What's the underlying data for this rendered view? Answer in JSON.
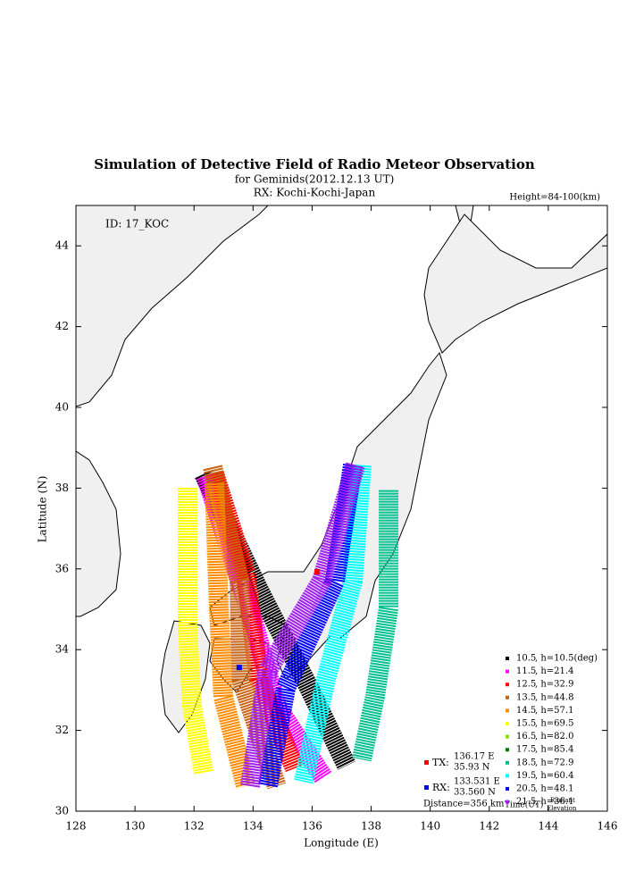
{
  "chart_data": {
    "type": "map",
    "title": "Simulation of Detective Field of Radio Meteor Observation",
    "subtitle": [
      "for Geminids(2012.12.13 UT)",
      "RX: Kochi-Kochi-Japan"
    ],
    "height_label": "Height=84-100(km)",
    "id_label": "ID: 17_KOC",
    "x_label": "Longitude (E)",
    "y_label": "Latitude (N)",
    "xlim": [
      128,
      146
    ],
    "ylim": [
      30,
      45
    ],
    "xticks": [
      128,
      130,
      132,
      134,
      136,
      138,
      140,
      142,
      144,
      146
    ],
    "yticks": [
      30,
      32,
      34,
      36,
      38,
      40,
      42,
      44
    ],
    "series": [
      {
        "name": "10.5",
        "label": ", h=10.5(deg)",
        "color": "#000000",
        "x": [
          132.33,
          134.2,
          135.8,
          137.17
        ],
        "y": [
          38.35,
          35.47,
          33.2,
          31.13
        ]
      },
      {
        "name": "11.5",
        "label": ", h=21.4",
        "color": "#ff00ff",
        "x": [
          132.4,
          134.05,
          134.8,
          136.38
        ],
        "y": [
          38.3,
          34.59,
          32.6,
          30.84
        ]
      },
      {
        "name": "12.5",
        "label": ", h=32.9",
        "color": "#ff0000",
        "x": [
          132.69,
          133.75,
          134.2,
          135.41
        ],
        "y": [
          38.35,
          35.9,
          33.27,
          31.06
        ]
      },
      {
        "name": "13.5",
        "label": ", h=44.8",
        "color": "#c86414",
        "x": [
          132.63,
          133.54,
          133.6,
          134.8
        ],
        "y": [
          38.52,
          35.7,
          33.27,
          30.62
        ]
      },
      {
        "name": "14.5",
        "label": ", h=57.1",
        "color": "#ff8c00",
        "x": [
          132.69,
          132.84,
          132.99,
          133.75
        ],
        "y": [
          38.12,
          35.03,
          32.83,
          30.62
        ]
      },
      {
        "name": "15.5",
        "label": ", h=69.5",
        "color": "#ffff00",
        "x": [
          131.78,
          131.78,
          131.93,
          132.33
        ],
        "y": [
          38.01,
          34.59,
          32.6,
          30.95
        ]
      },
      {
        "name": "16.5",
        "label": ", h=82.0",
        "color": "#80e000",
        "x": [],
        "y": []
      },
      {
        "name": "17.5",
        "label": ", h=85.4",
        "color": "#008000",
        "x": [],
        "y": []
      },
      {
        "name": "18.5",
        "label": ", h=72.9",
        "color": "#00c090",
        "x": [
          138.59,
          138.59,
          138.13,
          137.68
        ],
        "y": [
          37.95,
          35.03,
          32.83,
          31.28
        ]
      },
      {
        "name": "19.5",
        "label": ", h=60.4",
        "color": "#00ffff",
        "x": [
          137.68,
          137.38,
          136.47,
          135.71
        ],
        "y": [
          38.57,
          35.7,
          33.27,
          30.73
        ]
      },
      {
        "name": "20.5",
        "label": ", h=48.1",
        "color": "#0000ff",
        "x": [
          137.38,
          136.77,
          135.11,
          134.5
        ],
        "y": [
          38.57,
          35.7,
          33.05,
          30.62
        ]
      },
      {
        "name": "21.5",
        "label": ", h=36.1",
        "color": "#a020f0",
        "x": [
          137.47,
          136.32,
          134.5,
          133.9
        ],
        "y": [
          38.57,
          35.7,
          33.49,
          30.62
        ]
      }
    ],
    "legend_footer": [
      "Time(UT)",
      "Radiant",
      "Elevation"
    ],
    "tx": {
      "label": "TX:",
      "color": "#ff0000",
      "lon": 136.17,
      "lat": 35.93,
      "lon_label": "136.17 E",
      "lat_label": "35.93 N"
    },
    "rx": {
      "label": "RX:",
      "color": "#0000ff",
      "lon": 133.531,
      "lat": 33.56,
      "lon_label": "133.531 E",
      "lat_label": "33.560 N"
    },
    "distance": "Distance=356 km"
  }
}
